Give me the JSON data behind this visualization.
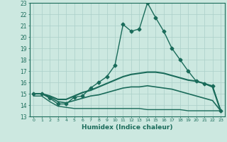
{
  "xlabel": "Humidex (Indice chaleur)",
  "xlim": [
    -0.5,
    23.5
  ],
  "ylim": [
    13,
    23
  ],
  "xticks": [
    0,
    1,
    2,
    3,
    4,
    5,
    6,
    7,
    8,
    9,
    10,
    11,
    12,
    13,
    14,
    15,
    16,
    17,
    18,
    19,
    20,
    21,
    22,
    23
  ],
  "yticks": [
    13,
    14,
    15,
    16,
    17,
    18,
    19,
    20,
    21,
    22,
    23
  ],
  "bg_color": "#cce8e0",
  "line_color": "#1a6b5a",
  "grid_color": "#aacfc8",
  "series": [
    {
      "x": [
        0,
        1,
        2,
        3,
        4,
        5,
        6,
        7,
        8,
        9,
        10,
        11,
        12,
        13,
        14,
        15,
        16,
        17,
        18,
        19,
        20,
        21,
        22,
        23
      ],
      "y": [
        15.0,
        15.0,
        14.6,
        14.1,
        14.1,
        14.7,
        14.8,
        15.5,
        16.0,
        16.5,
        17.5,
        21.1,
        20.5,
        20.7,
        23.0,
        21.7,
        20.5,
        19.0,
        18.0,
        17.0,
        16.1,
        15.9,
        15.7,
        13.5
      ],
      "marker": "D",
      "markersize": 2.5,
      "linewidth": 1.0
    },
    {
      "x": [
        0,
        1,
        2,
        3,
        4,
        5,
        6,
        7,
        8,
        9,
        10,
        11,
        12,
        13,
        14,
        15,
        16,
        17,
        18,
        19,
        20,
        21,
        22,
        23
      ],
      "y": [
        15.0,
        15.0,
        14.8,
        14.5,
        14.5,
        14.8,
        15.1,
        15.3,
        15.6,
        15.9,
        16.2,
        16.5,
        16.7,
        16.8,
        16.9,
        16.9,
        16.8,
        16.6,
        16.4,
        16.2,
        16.1,
        15.9,
        15.6,
        13.5
      ],
      "marker": null,
      "linewidth": 1.5
    },
    {
      "x": [
        0,
        1,
        2,
        3,
        4,
        5,
        6,
        7,
        8,
        9,
        10,
        11,
        12,
        13,
        14,
        15,
        16,
        17,
        18,
        19,
        20,
        21,
        22,
        23
      ],
      "y": [
        15.0,
        15.0,
        14.7,
        14.3,
        14.2,
        14.4,
        14.6,
        14.8,
        14.9,
        15.1,
        15.3,
        15.5,
        15.6,
        15.6,
        15.7,
        15.6,
        15.5,
        15.4,
        15.2,
        15.0,
        14.8,
        14.6,
        14.4,
        13.5
      ],
      "marker": null,
      "linewidth": 1.2
    },
    {
      "x": [
        0,
        1,
        2,
        3,
        4,
        5,
        6,
        7,
        8,
        9,
        10,
        11,
        12,
        13,
        14,
        15,
        16,
        17,
        18,
        19,
        20,
        21,
        22,
        23
      ],
      "y": [
        14.8,
        14.8,
        14.3,
        13.9,
        13.8,
        13.7,
        13.7,
        13.7,
        13.7,
        13.7,
        13.7,
        13.7,
        13.7,
        13.7,
        13.6,
        13.6,
        13.6,
        13.6,
        13.6,
        13.5,
        13.5,
        13.5,
        13.5,
        13.5
      ],
      "marker": null,
      "linewidth": 1.0
    }
  ]
}
